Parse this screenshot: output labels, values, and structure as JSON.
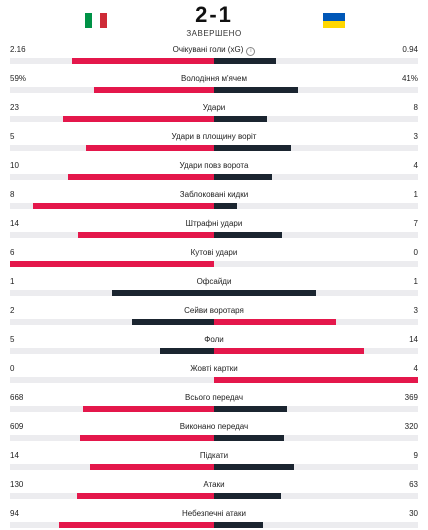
{
  "match": {
    "score": "2-1",
    "status": "ЗАВЕРШЕНО",
    "home_flag": "italy-flag",
    "away_flag": "ukraine-flag"
  },
  "colors": {
    "leader": "#e4174b",
    "other": "#1b2530",
    "track": "#ececef",
    "italy": [
      "#009246",
      "#ffffff",
      "#ce2b37"
    ],
    "ukraine": [
      "#0057b7",
      "#ffd700"
    ]
  },
  "stats": [
    {
      "name": "Очікувані голи (xG)",
      "left": "2.16",
      "right": "0.94",
      "lval": 2.16,
      "rval": 0.94,
      "info": true
    },
    {
      "name": "Володіння м'ячем",
      "left": "59%",
      "right": "41%",
      "lval": 59,
      "rval": 41
    },
    {
      "name": "Удари",
      "left": "23",
      "right": "8",
      "lval": 23,
      "rval": 8
    },
    {
      "name": "Удари в площину воріт",
      "left": "5",
      "right": "3",
      "lval": 5,
      "rval": 3
    },
    {
      "name": "Удари повз ворота",
      "left": "10",
      "right": "4",
      "lval": 10,
      "rval": 4
    },
    {
      "name": "Заблоковані кидки",
      "left": "8",
      "right": "1",
      "lval": 8,
      "rval": 1
    },
    {
      "name": "Штрафні удари",
      "left": "14",
      "right": "7",
      "lval": 14,
      "rval": 7
    },
    {
      "name": "Кутові удари",
      "left": "6",
      "right": "0",
      "lval": 6,
      "rval": 0
    },
    {
      "name": "Офсайди",
      "left": "1",
      "right": "1",
      "lval": 1,
      "rval": 1
    },
    {
      "name": "Сейви воротаря",
      "left": "2",
      "right": "3",
      "lval": 2,
      "rval": 3
    },
    {
      "name": "Фоли",
      "left": "5",
      "right": "14",
      "lval": 5,
      "rval": 14
    },
    {
      "name": "Жовті картки",
      "left": "0",
      "right": "4",
      "lval": 0,
      "rval": 4
    },
    {
      "name": "Всього передач",
      "left": "668",
      "right": "369",
      "lval": 668,
      "rval": 369
    },
    {
      "name": "Виконано передач",
      "left": "609",
      "right": "320",
      "lval": 609,
      "rval": 320
    },
    {
      "name": "Підкати",
      "left": "14",
      "right": "9",
      "lval": 14,
      "rval": 9
    },
    {
      "name": "Атаки",
      "left": "130",
      "right": "63",
      "lval": 130,
      "rval": 63
    },
    {
      "name": "Небезпечні атаки",
      "left": "94",
      "right": "30",
      "lval": 94,
      "rval": 30
    }
  ]
}
